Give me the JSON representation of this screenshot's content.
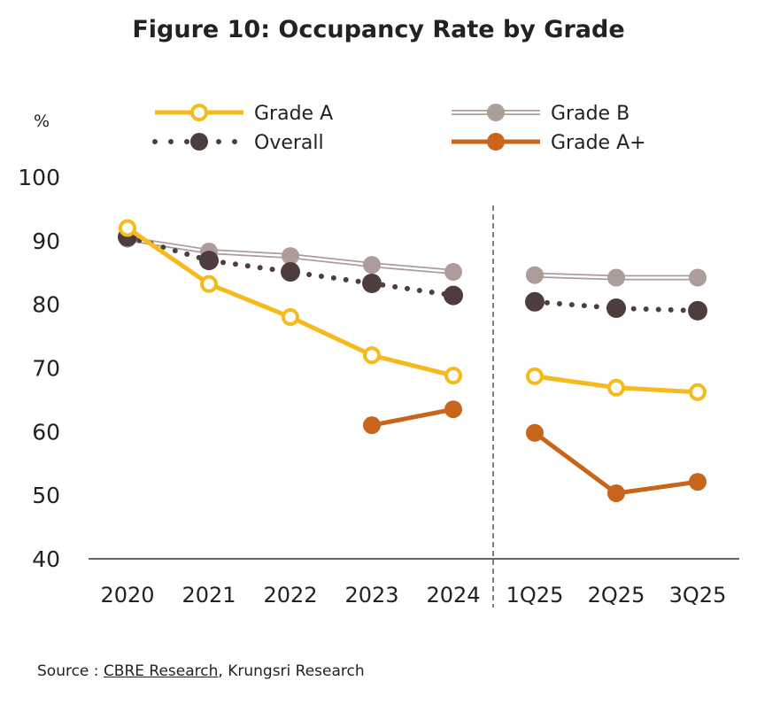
{
  "chart_data": {
    "type": "line",
    "title": "Figure 10: Occupancy Rate by Grade",
    "ylabel": "%",
    "xlabel": "",
    "ylim": [
      40,
      100
    ],
    "yticks": [
      40,
      50,
      60,
      70,
      80,
      90,
      100
    ],
    "categories": [
      "2020",
      "2021",
      "2022",
      "2023",
      "2024",
      "1Q25",
      "2Q25",
      "3Q25"
    ],
    "legend_position": "top",
    "grid": false,
    "series": [
      {
        "name": "Grade A",
        "color": "#F5BA1C",
        "style": "solid-hollow-marker",
        "values": [
          92,
          83.2,
          78,
          72,
          68.8,
          68.7,
          66.9,
          66.2
        ]
      },
      {
        "name": "Grade B",
        "color": "#AC9D9B",
        "style": "double-line",
        "values": [
          90.3,
          88.3,
          87.6,
          86.2,
          85.1,
          84.6,
          84.2,
          84.2
        ]
      },
      {
        "name": "Overall",
        "color": "#4E3D3D",
        "style": "dotted",
        "values": [
          90.6,
          86.9,
          85.1,
          83.3,
          81.4,
          80.4,
          79.4,
          79.0
        ]
      },
      {
        "name": "Grade A+",
        "color": "#C8651B",
        "style": "solid",
        "values": [
          null,
          null,
          null,
          61.0,
          63.5,
          59.8,
          50.3,
          52.1
        ]
      }
    ]
  },
  "source": {
    "prefix": "Source : ",
    "link": "CBRE Research",
    "suffix": ", Krungsri Research"
  }
}
